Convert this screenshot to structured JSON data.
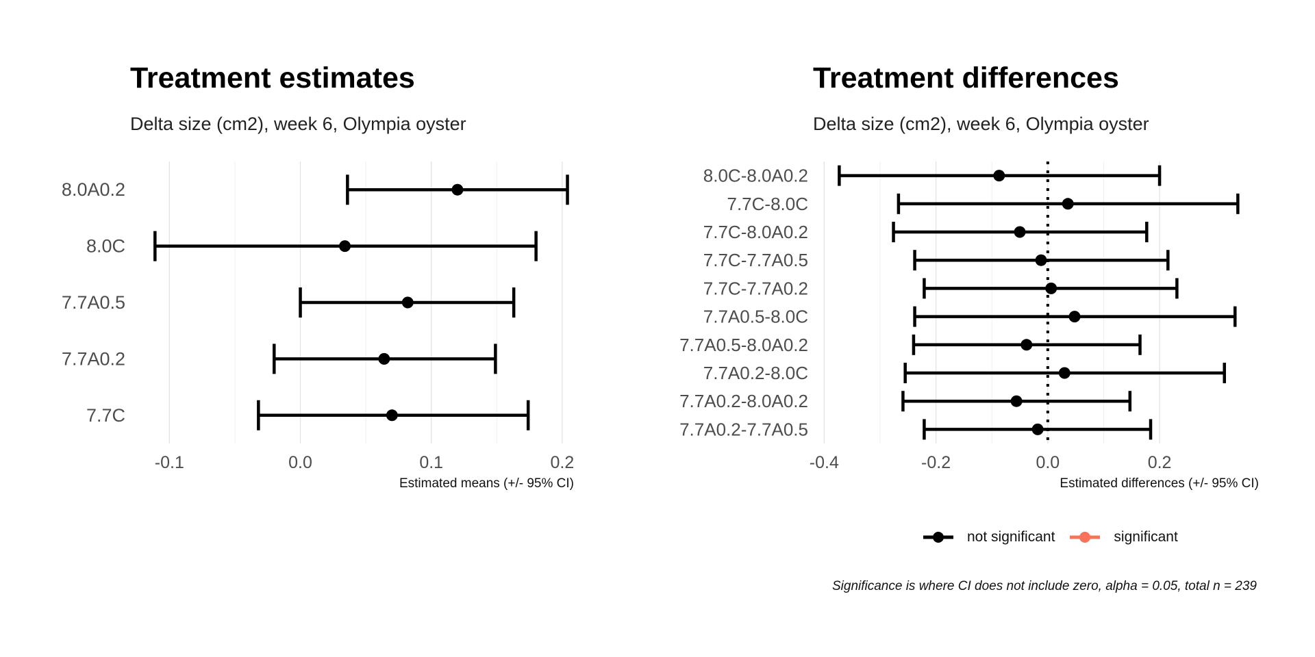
{
  "chart_data": [
    {
      "type": "errorbar",
      "title": "Treatment estimates",
      "subtitle": "Delta size (cm2), week 6, Olympia oyster",
      "xlabel": "Estimated means (+/- 95% CI)",
      "ylabel": "",
      "xlim": [
        -0.13,
        0.21
      ],
      "xticks": [
        -0.1,
        0.0,
        0.1,
        0.2
      ],
      "xtick_labels": [
        "-0.1",
        "0.0",
        "0.1",
        "0.2"
      ],
      "grid": true,
      "categories": [
        "8.0A0.2",
        "8.0C",
        "7.7A0.5",
        "7.7A0.2",
        "7.7C"
      ],
      "estimate": [
        0.12,
        0.034,
        0.082,
        0.064,
        0.07
      ],
      "lower": [
        0.036,
        -0.111,
        0.0,
        -0.02,
        -0.032
      ],
      "upper": [
        0.204,
        0.18,
        0.163,
        0.149,
        0.174
      ]
    },
    {
      "type": "errorbar",
      "title": "Treatment differences",
      "subtitle": "Delta size (cm2), week 6, Olympia oyster",
      "xlabel": "Estimated differences (+/- 95% CI)",
      "ylabel": "",
      "xlim": [
        -0.42,
        0.38
      ],
      "xticks": [
        -0.4,
        -0.2,
        0.0,
        0.2
      ],
      "xtick_labels": [
        "-0.4",
        "-0.2",
        "0.0",
        "0.2"
      ],
      "grid": true,
      "reference_line": 0.0,
      "categories": [
        "8.0C-8.0A0.2",
        "7.7C-8.0C",
        "7.7C-8.0A0.2",
        "7.7C-7.7A0.5",
        "7.7C-7.7A0.2",
        "7.7A0.5-8.0C",
        "7.7A0.5-8.0A0.2",
        "7.7A0.2-8.0C",
        "7.7A0.2-8.0A0.2",
        "7.7A0.2-7.7A0.5"
      ],
      "estimate": [
        -0.087,
        0.036,
        -0.05,
        -0.012,
        0.006,
        0.048,
        -0.038,
        0.03,
        -0.056,
        -0.018
      ],
      "lower": [
        -0.373,
        -0.267,
        -0.276,
        -0.238,
        -0.221,
        -0.238,
        -0.24,
        -0.255,
        -0.259,
        -0.221
      ],
      "upper": [
        0.2,
        0.34,
        0.177,
        0.215,
        0.231,
        0.335,
        0.165,
        0.316,
        0.147,
        0.184
      ],
      "significant": [
        false,
        false,
        false,
        false,
        false,
        false,
        false,
        false,
        false,
        false
      ],
      "legend": [
        {
          "label": "not significant",
          "color": "#000000"
        },
        {
          "label": "significant",
          "color": "#f8735a"
        }
      ],
      "legend_position": "bottom",
      "caption": "Significance is where CI does not include zero, alpha = 0.05, total n = 239"
    }
  ]
}
